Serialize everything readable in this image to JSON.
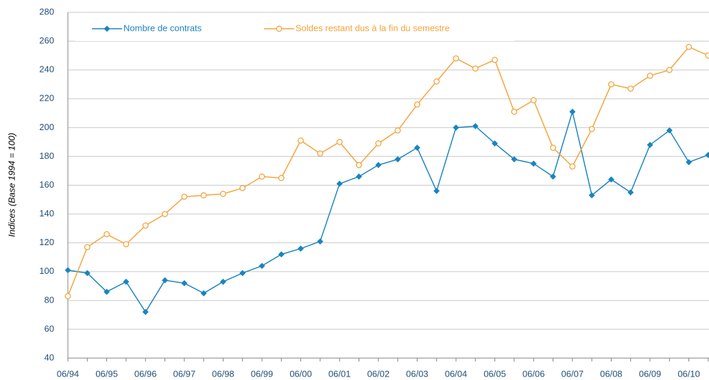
{
  "chart_data": {
    "type": "line",
    "y_label": "Indices (Base 1994 = 100)",
    "categories": [
      "06/94",
      null,
      "06/95",
      null,
      "06/96",
      null,
      "06/97",
      null,
      "06/98",
      null,
      "06/99",
      null,
      "06/00",
      null,
      "06/01",
      null,
      "06/02",
      null,
      "06/03",
      null,
      "06/04",
      null,
      "06/05",
      null,
      "06/06",
      null,
      "06/07",
      null,
      "06/08",
      null,
      "06/09",
      null,
      "06/10",
      null
    ],
    "series": [
      {
        "name": "Nombre de contrats",
        "color": "#1a84c0",
        "marker": "diamond",
        "values": [
          101,
          99,
          86,
          93,
          72,
          94,
          92,
          85,
          93,
          99,
          104,
          112,
          116,
          121,
          161,
          166,
          174,
          178,
          186,
          156,
          200,
          201,
          189,
          178,
          175,
          166,
          211,
          153,
          164,
          155,
          188,
          198,
          176,
          181
        ]
      },
      {
        "name": "Soldes restant dus à la fin du semestre",
        "color": "#f5a33a",
        "marker": "circle",
        "values": [
          83,
          117,
          126,
          119,
          132,
          140,
          152,
          153,
          154,
          158,
          166,
          165,
          191,
          182,
          190,
          174,
          189,
          198,
          216,
          232,
          248,
          241,
          247,
          211,
          219,
          186,
          173,
          199,
          230,
          227,
          236,
          240,
          256,
          250
        ]
      }
    ],
    "ylim": [
      40,
      280
    ],
    "yticks": [
      40,
      60,
      80,
      100,
      120,
      140,
      160,
      180,
      200,
      220,
      240,
      260,
      280
    ],
    "grid": true
  }
}
